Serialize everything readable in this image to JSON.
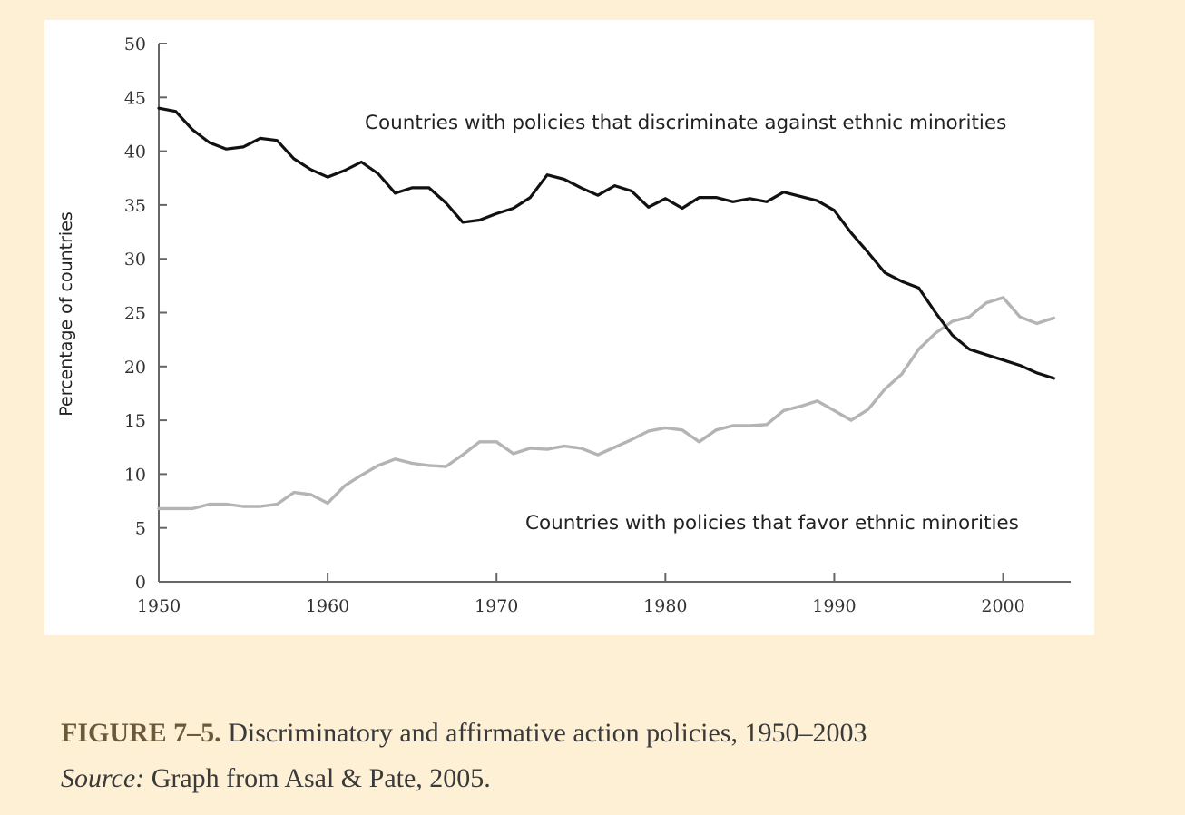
{
  "chart_data": {
    "type": "line",
    "title": "",
    "xlabel": "",
    "ylabel": "Percentage of countries",
    "xlim": [
      1950,
      2004
    ],
    "ylim": [
      0,
      50
    ],
    "x_ticks": [
      1950,
      1960,
      1970,
      1980,
      1990,
      2000
    ],
    "x_tick_labels": [
      "1950",
      "1960",
      "1970",
      "1980",
      "1990",
      "2000"
    ],
    "y_ticks": [
      0,
      5,
      10,
      15,
      20,
      25,
      30,
      35,
      40,
      45,
      50
    ],
    "y_tick_labels": [
      "0",
      "5",
      "10",
      "15",
      "20",
      "25",
      "30",
      "35",
      "40",
      "45",
      "50"
    ],
    "grid": false,
    "x": [
      1950,
      1951,
      1952,
      1953,
      1954,
      1955,
      1956,
      1957,
      1958,
      1959,
      1960,
      1961,
      1962,
      1963,
      1964,
      1965,
      1966,
      1967,
      1968,
      1969,
      1970,
      1971,
      1972,
      1973,
      1974,
      1975,
      1976,
      1977,
      1978,
      1979,
      1980,
      1981,
      1982,
      1983,
      1984,
      1985,
      1986,
      1987,
      1988,
      1989,
      1990,
      1991,
      1992,
      1993,
      1994,
      1995,
      1996,
      1997,
      1998,
      1999,
      2000,
      2001,
      2002,
      2003
    ],
    "series": [
      {
        "name": "Countries with policies that discriminate against ethnic minorities",
        "color": "#111111",
        "values": [
          44.0,
          43.7,
          42.0,
          40.8,
          40.2,
          40.4,
          41.2,
          41.0,
          39.3,
          38.3,
          37.6,
          38.2,
          39.0,
          37.9,
          36.1,
          36.6,
          36.6,
          35.2,
          33.4,
          33.6,
          34.2,
          34.7,
          35.7,
          37.8,
          37.4,
          36.6,
          35.9,
          36.8,
          36.3,
          34.8,
          35.6,
          34.7,
          35.7,
          35.7,
          35.3,
          35.6,
          35.3,
          36.2,
          35.8,
          35.4,
          34.5,
          32.4,
          30.6,
          28.7,
          27.9,
          27.3,
          25.0,
          22.9,
          21.6,
          21.1,
          20.6,
          20.1,
          19.4,
          18.9
        ]
      },
      {
        "name": "Countries with policies that favor ethnic minorities",
        "color": "#b4b4b4",
        "values": [
          6.8,
          6.8,
          6.8,
          7.2,
          7.2,
          7.0,
          7.0,
          7.2,
          8.3,
          8.1,
          7.3,
          8.9,
          9.9,
          10.8,
          11.4,
          11.0,
          10.8,
          10.7,
          11.8,
          13.0,
          13.0,
          11.9,
          12.4,
          12.3,
          12.6,
          12.4,
          11.8,
          12.5,
          13.2,
          14.0,
          14.3,
          14.1,
          13.0,
          14.1,
          14.5,
          14.5,
          14.6,
          15.9,
          16.3,
          16.8,
          15.9,
          15.0,
          16.0,
          17.9,
          19.3,
          21.6,
          23.1,
          24.2,
          24.6,
          25.9,
          26.4,
          24.6,
          24.0,
          24.5
        ]
      }
    ],
    "annotations": [
      "Countries with policies that discriminate against ethnic minorities",
      "Countries with policies that favor ethnic minorities"
    ]
  },
  "caption": {
    "label": "FIGURE 7–5.",
    "text": " Discriminatory and affirmative action policies, 1950–2003",
    "source_label": "Source:",
    "source_text": " Graph from Asal & Pate, 2005."
  }
}
